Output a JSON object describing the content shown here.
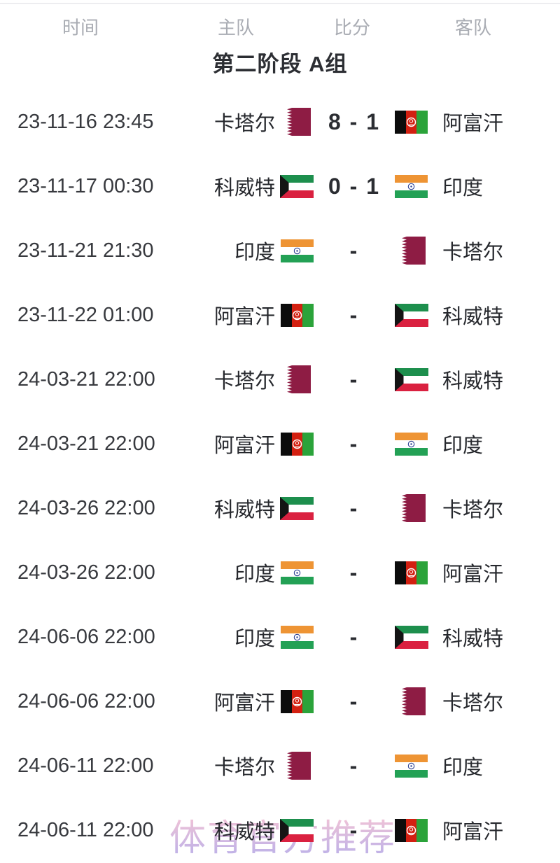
{
  "table_header": {
    "columns": [
      "时间",
      "主队",
      "比分",
      "客队"
    ]
  },
  "group_title": "第二阶段 A组",
  "watermark": "体育官方推荐",
  "matches": [
    {
      "time": "23-11-16 23:45",
      "home": "卡塔尔",
      "home_flag": "qatar",
      "score": "8 - 1",
      "away": "阿富汗",
      "away_flag": "afghanistan"
    },
    {
      "time": "23-11-17 00:30",
      "home": "科威特",
      "home_flag": "kuwait",
      "score": "0 - 1",
      "away": "印度",
      "away_flag": "india"
    },
    {
      "time": "23-11-21 21:30",
      "home": "印度",
      "home_flag": "india",
      "score": "-",
      "away": "卡塔尔",
      "away_flag": "qatar"
    },
    {
      "time": "23-11-22 01:00",
      "home": "阿富汗",
      "home_flag": "afghanistan",
      "score": "-",
      "away": "科威特",
      "away_flag": "kuwait"
    },
    {
      "time": "24-03-21 22:00",
      "home": "卡塔尔",
      "home_flag": "qatar",
      "score": "-",
      "away": "科威特",
      "away_flag": "kuwait"
    },
    {
      "time": "24-03-21 22:00",
      "home": "阿富汗",
      "home_flag": "afghanistan",
      "score": "-",
      "away": "印度",
      "away_flag": "india"
    },
    {
      "time": "24-03-26 22:00",
      "home": "科威特",
      "home_flag": "kuwait",
      "score": "-",
      "away": "卡塔尔",
      "away_flag": "qatar"
    },
    {
      "time": "24-03-26 22:00",
      "home": "印度",
      "home_flag": "india",
      "score": "-",
      "away": "阿富汗",
      "away_flag": "afghanistan"
    },
    {
      "time": "24-06-06 22:00",
      "home": "印度",
      "home_flag": "india",
      "score": "-",
      "away": "科威特",
      "away_flag": "kuwait"
    },
    {
      "time": "24-06-06 22:00",
      "home": "阿富汗",
      "home_flag": "afghanistan",
      "score": "-",
      "away": "卡塔尔",
      "away_flag": "qatar"
    },
    {
      "time": "24-06-11 22:00",
      "home": "卡塔尔",
      "home_flag": "qatar",
      "score": "-",
      "away": "印度",
      "away_flag": "india"
    },
    {
      "time": "24-06-11 22:00",
      "home": "科威特",
      "home_flag": "kuwait",
      "score": "-",
      "away": "阿富汗",
      "away_flag": "afghanistan"
    }
  ],
  "colors": {
    "qatar_maroon": "#8e1c44",
    "afghan_black": "#0c0c0c",
    "afghan_red": "#d32011",
    "afghan_green": "#2ba33a",
    "kuwait_green": "#1d8f4d",
    "kuwait_red": "#da2140",
    "kuwait_black": "#141414",
    "india_saffron": "#ee9434",
    "india_green": "#23a155",
    "india_navy": "#2a3f92",
    "header_text": "#a9acb3",
    "title_text": "#2c2e33",
    "watermark_pink": "#f4bfd1",
    "watermark_purple": "#b7a9e6"
  }
}
